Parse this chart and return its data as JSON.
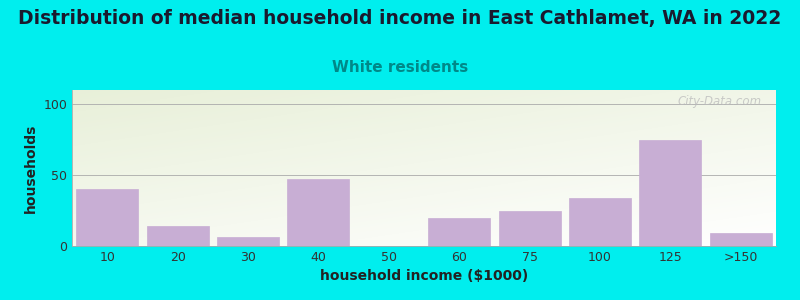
{
  "title": "Distribution of median household income in East Cathlamet, WA in 2022",
  "subtitle": "White residents",
  "xlabel": "household income ($1000)",
  "ylabel": "households",
  "background_color": "#00EEEE",
  "plot_bg_top": "#e8f0d8",
  "plot_bg_bottom": "#f8faf0",
  "bar_color": "#c8aed4",
  "bar_edge_color": "#c8aed4",
  "categories": [
    "10",
    "20",
    "30",
    "40",
    "50",
    "60",
    "75",
    "100",
    "125",
    ">150"
  ],
  "values": [
    40,
    14,
    6,
    47,
    0,
    20,
    25,
    34,
    75,
    9
  ],
  "ylim": [
    0,
    110
  ],
  "yticks": [
    0,
    50,
    100
  ],
  "title_fontsize": 13.5,
  "subtitle_fontsize": 11,
  "subtitle_color": "#008888",
  "axis_label_fontsize": 10,
  "tick_fontsize": 9,
  "watermark": "City-Data.com"
}
